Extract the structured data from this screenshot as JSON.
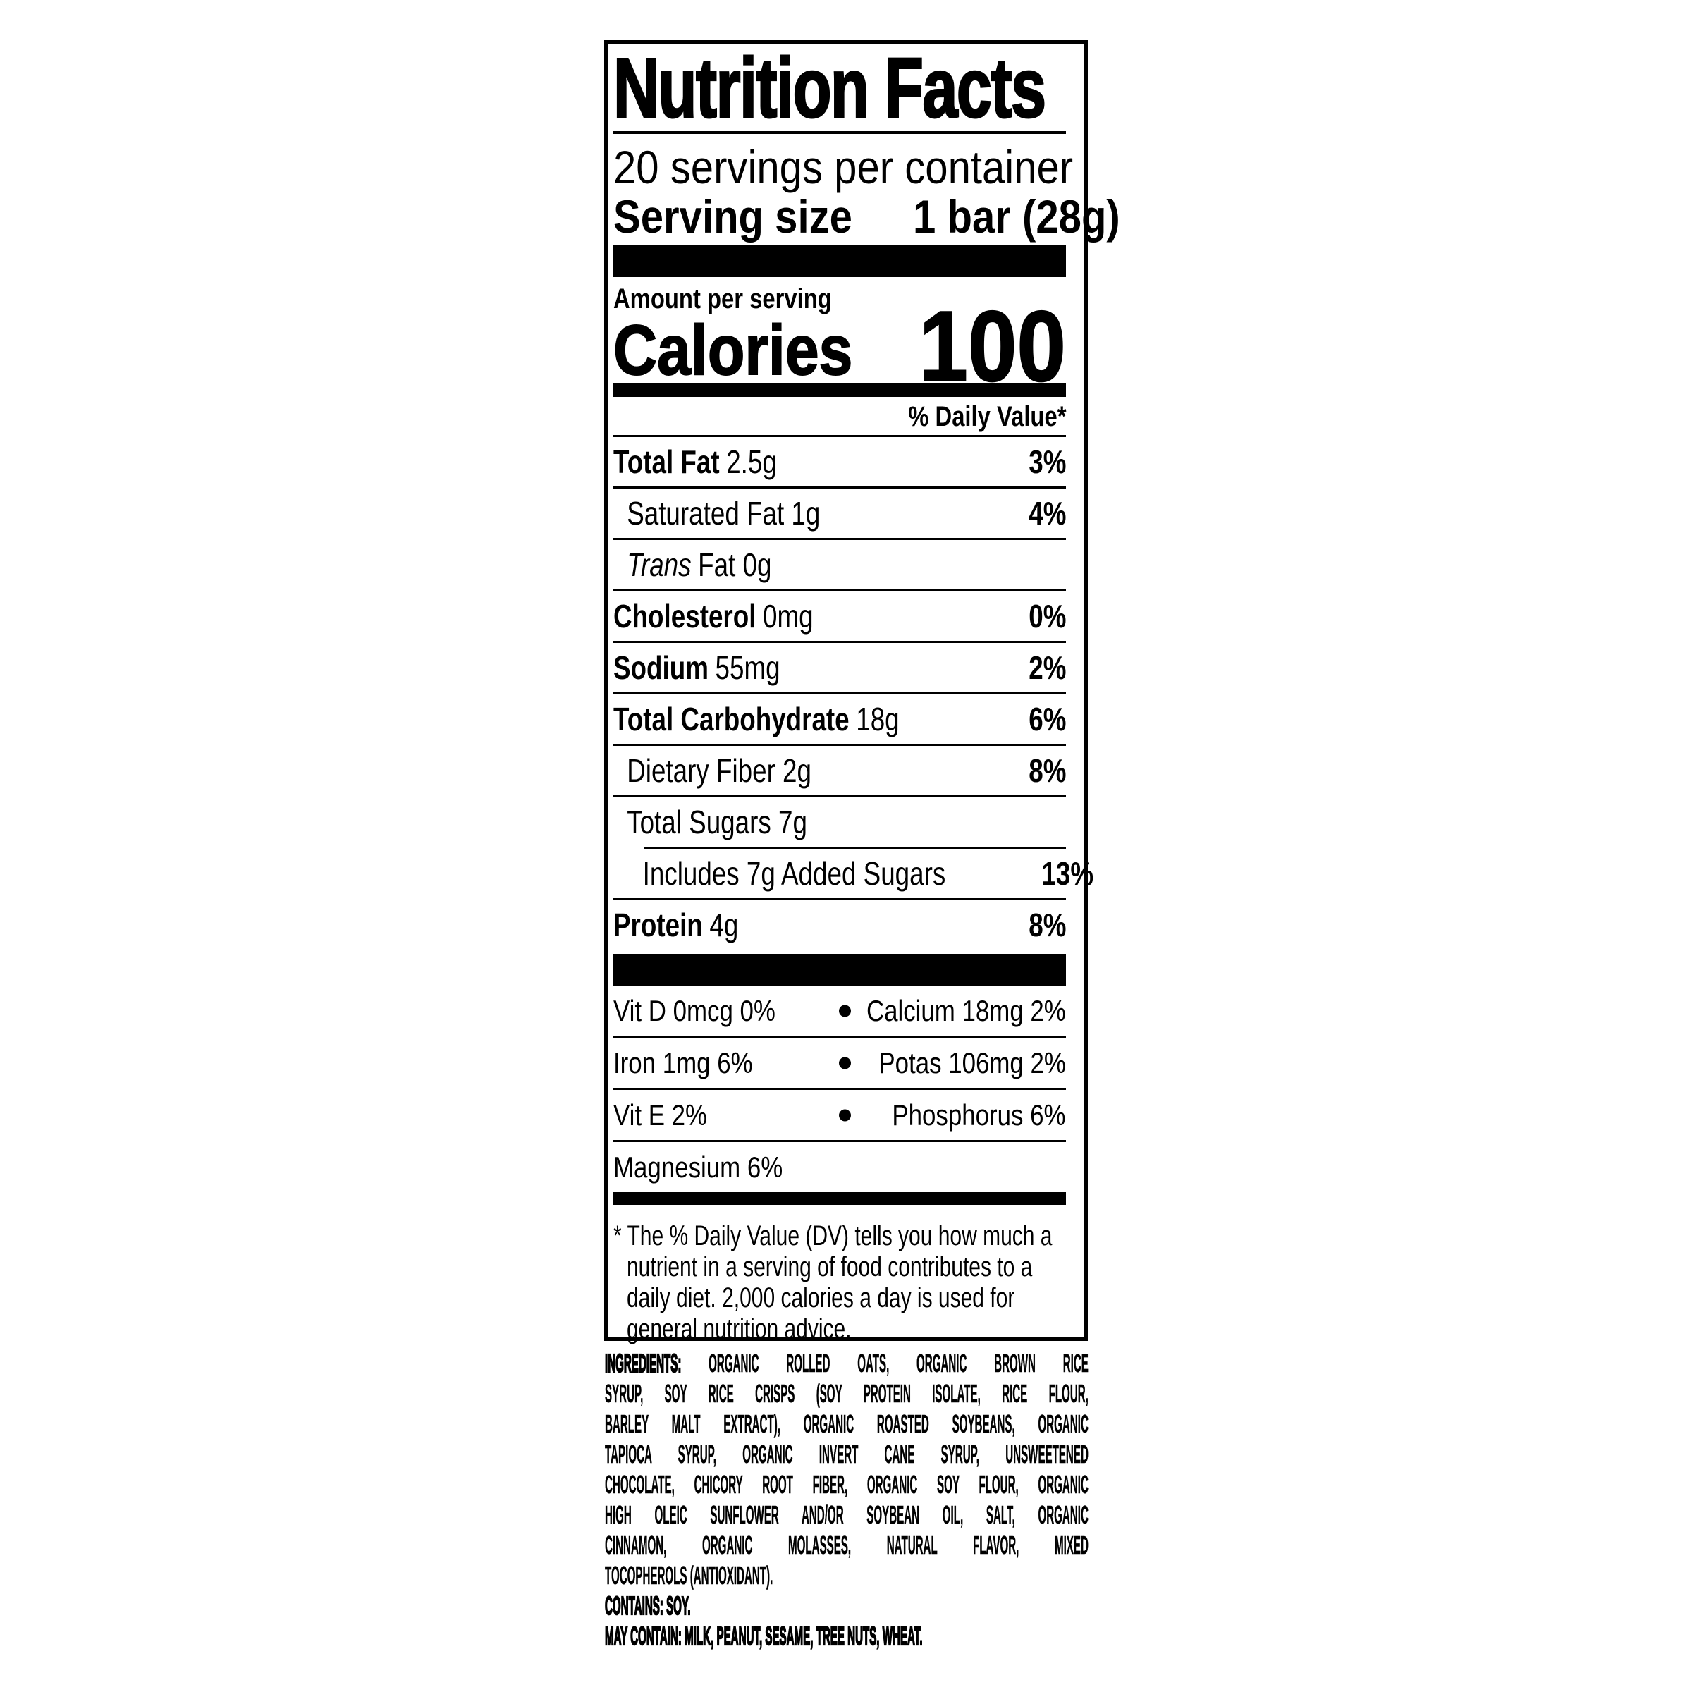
{
  "colors": {
    "ink": "#000000",
    "paper": "#ffffff"
  },
  "label": {
    "title": "Nutrition Facts",
    "servings_per_container": "20 servings per container",
    "serving_size_label": "Serving size",
    "serving_size_value": "1 bar (28g)",
    "amount_per_serving": "Amount per serving",
    "calories_label": "Calories",
    "calories_value": "100",
    "daily_value_header": "% Daily Value*",
    "rows": [
      {
        "bold": "Total Fat",
        "rest": "2.5g",
        "dv": "3%"
      },
      {
        "name": "Saturated Fat 1g",
        "dv": "4%"
      },
      {
        "italic": "Trans",
        "rest": "Fat 0g",
        "dv": ""
      },
      {
        "bold": "Cholesterol",
        "rest": "0mg",
        "dv": "0%"
      },
      {
        "bold": "Sodium",
        "rest": "55mg",
        "dv": "2%"
      },
      {
        "bold": "Total Carbohydrate",
        "rest": "18g",
        "dv": "6%"
      },
      {
        "name": "Dietary Fiber 2g",
        "dv": "8%"
      },
      {
        "name": "Total Sugars 7g",
        "dv": ""
      },
      {
        "name": "Includes 7g Added Sugars",
        "dv": "13%"
      },
      {
        "bold": "Protein",
        "rest": "4g",
        "dv": "8%"
      }
    ],
    "bullet": "•",
    "vitamins": [
      {
        "left": "Vit D 0mcg 0%",
        "right": "Calcium 18mg 2%"
      },
      {
        "left": "Iron 1mg 6%",
        "right": "Potas 106mg 2%"
      },
      {
        "left": "Vit E 2%",
        "right": "Phosphorus 6%"
      },
      {
        "left": "Magnesium 6%",
        "right": ""
      }
    ],
    "footnote_lines": [
      "* The % Daily Value (DV) tells you how much a",
      "nutrient in a serving of food contributes to a",
      "daily diet. 2,000 calories a day is used for",
      "general nutrition advice."
    ]
  },
  "ingredients": {
    "heading": "INGREDIENTS:",
    "line1_rest": "ORGANIC ROLLED OATS, ORGANIC BROWN RICE",
    "lines": [
      "SYRUP, SOY RICE CRISPS (SOY PROTEIN ISOLATE, RICE FLOUR,",
      "BARLEY MALT EXTRACT), ORGANIC ROASTED SOYBEANS, ORGANIC",
      "TAPIOCA SYRUP, ORGANIC INVERT CANE SYRUP, UNSWEETENED",
      "CHOCOLATE, CHICORY ROOT FIBER, ORGANIC SOY FLOUR, ORGANIC",
      "HIGH OLEIC SUNFLOWER AND/OR SOYBEAN OIL, SALT, ORGANIC",
      "CINNAMON, ORGANIC MOLASSES, NATURAL FLAVOR, MIXED",
      "TOCOPHEROLS (ANTIOXIDANT)."
    ],
    "contains": "CONTAINS: SOY.",
    "may_contain": "MAY CONTAIN: MILK, PEANUT, SESAME, TREE NUTS, WHEAT."
  }
}
